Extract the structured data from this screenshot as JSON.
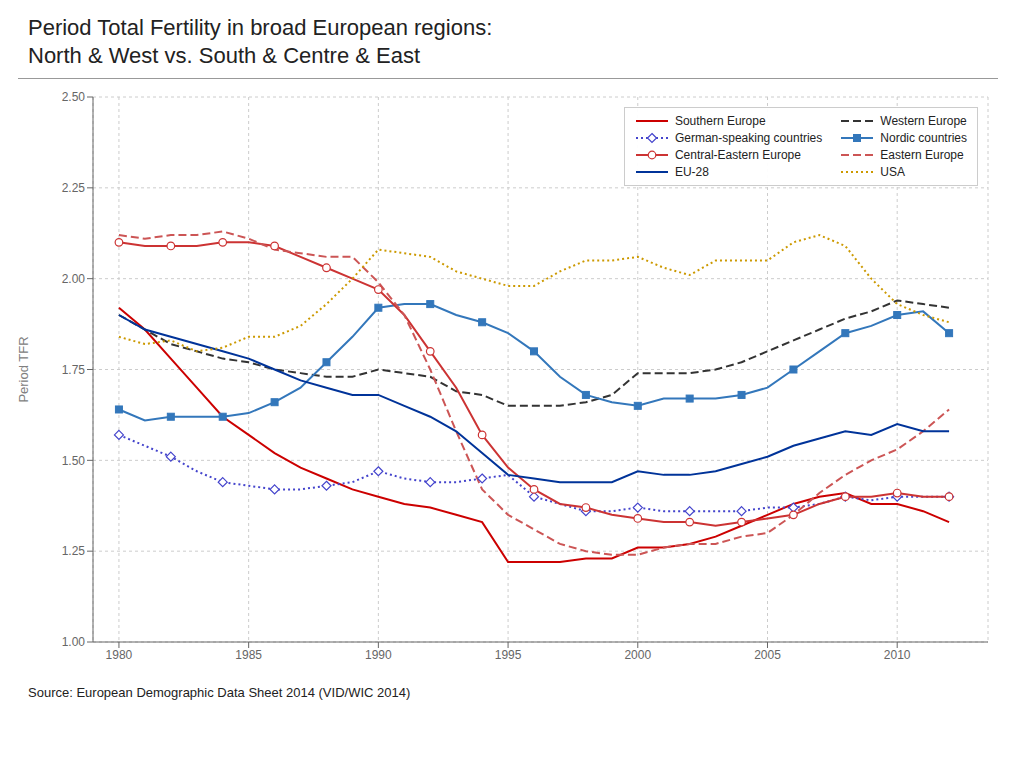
{
  "chart_data": {
    "type": "line",
    "title": "Period Total Fertility in broad European regions:",
    "subtitle": "North & West vs. South & Centre & East",
    "ylabel": "Period TFR",
    "annotations": [
      "Source: European Demographic Data Sheet 2014 (VID/WIC 2014)"
    ],
    "x": [
      1980,
      1981,
      1982,
      1983,
      1984,
      1985,
      1986,
      1987,
      1988,
      1989,
      1990,
      1991,
      1992,
      1993,
      1994,
      1995,
      1996,
      1997,
      1998,
      1999,
      2000,
      2001,
      2002,
      2003,
      2004,
      2005,
      2006,
      2007,
      2008,
      2009,
      2010,
      2011,
      2012
    ],
    "xlim": [
      1979,
      2013.5
    ],
    "xticks": [
      1980,
      1985,
      1990,
      1995,
      2000,
      2005,
      2010
    ],
    "ylim": [
      1.0,
      2.5
    ],
    "yticks": [
      {
        "value": 1.0,
        "label": "1.00"
      },
      {
        "value": 1.25,
        "label": "1.25"
      },
      {
        "value": 1.5,
        "label": "1.50"
      },
      {
        "value": 1.75,
        "label": "1.75"
      },
      {
        "value": 2.0,
        "label": "2.00"
      },
      {
        "value": 2.25,
        "label": "2.25"
      },
      {
        "value": 2.5,
        "label": "2.50"
      }
    ],
    "grid": true,
    "legend": "upper right",
    "series": [
      {
        "name": "Southern Europe",
        "color": "#cc0000",
        "line_style": "solid",
        "values": [
          1.92,
          1.86,
          1.78,
          1.7,
          1.62,
          1.57,
          1.52,
          1.48,
          1.45,
          1.42,
          1.4,
          1.38,
          1.37,
          1.35,
          1.33,
          1.22,
          1.22,
          1.22,
          1.23,
          1.23,
          1.26,
          1.26,
          1.27,
          1.29,
          1.32,
          1.35,
          1.38,
          1.4,
          1.41,
          1.38,
          1.38,
          1.36,
          1.33
        ]
      },
      {
        "name": "Western Europe",
        "color": "#333333",
        "line_style": "dashed",
        "values": [
          1.9,
          1.86,
          1.82,
          1.8,
          1.78,
          1.77,
          1.75,
          1.74,
          1.73,
          1.73,
          1.75,
          1.74,
          1.73,
          1.69,
          1.68,
          1.65,
          1.65,
          1.65,
          1.66,
          1.68,
          1.74,
          1.74,
          1.74,
          1.75,
          1.77,
          1.8,
          1.83,
          1.86,
          1.89,
          1.91,
          1.94,
          1.93,
          1.92
        ]
      },
      {
        "name": "German-speaking countries",
        "color": "#4444cc",
        "line_style": "dotted",
        "marker": "diamond",
        "values": [
          1.57,
          1.54,
          1.51,
          1.47,
          1.44,
          1.43,
          1.42,
          1.42,
          1.43,
          1.44,
          1.47,
          1.45,
          1.44,
          1.44,
          1.45,
          1.46,
          1.4,
          1.38,
          1.36,
          1.36,
          1.37,
          1.36,
          1.36,
          1.36,
          1.36,
          1.37,
          1.37,
          1.38,
          1.4,
          1.39,
          1.4,
          1.4,
          1.4
        ]
      },
      {
        "name": "Nordic countries",
        "color": "#3377bb",
        "line_style": "solid",
        "marker": "square",
        "values": [
          1.64,
          1.61,
          1.62,
          1.62,
          1.62,
          1.63,
          1.66,
          1.7,
          1.77,
          1.84,
          1.92,
          1.93,
          1.93,
          1.9,
          1.88,
          1.85,
          1.8,
          1.73,
          1.68,
          1.66,
          1.65,
          1.67,
          1.67,
          1.67,
          1.68,
          1.7,
          1.75,
          1.8,
          1.85,
          1.87,
          1.9,
          1.91,
          1.85
        ]
      },
      {
        "name": "Central-Eastern Europe",
        "color": "#cc3333",
        "line_style": "solid",
        "marker": "circle",
        "values": [
          2.1,
          2.09,
          2.09,
          2.09,
          2.1,
          2.1,
          2.09,
          2.06,
          2.03,
          2.0,
          1.97,
          1.9,
          1.8,
          1.7,
          1.57,
          1.48,
          1.42,
          1.38,
          1.37,
          1.35,
          1.34,
          1.33,
          1.33,
          1.32,
          1.33,
          1.34,
          1.35,
          1.38,
          1.4,
          1.4,
          1.41,
          1.4,
          1.4
        ]
      },
      {
        "name": "Eastern Europe",
        "color": "#cc5555",
        "line_style": "dashed",
        "values": [
          2.12,
          2.11,
          2.12,
          2.12,
          2.13,
          2.11,
          2.08,
          2.07,
          2.06,
          2.06,
          1.99,
          1.9,
          1.75,
          1.58,
          1.42,
          1.35,
          1.31,
          1.27,
          1.25,
          1.24,
          1.24,
          1.26,
          1.27,
          1.27,
          1.29,
          1.3,
          1.35,
          1.41,
          1.46,
          1.5,
          1.53,
          1.58,
          1.64
        ]
      },
      {
        "name": "EU-28",
        "color": "#003399",
        "line_style": "solid",
        "values": [
          1.9,
          1.86,
          1.84,
          1.82,
          1.8,
          1.78,
          1.75,
          1.72,
          1.7,
          1.68,
          1.68,
          1.65,
          1.62,
          1.58,
          1.52,
          1.46,
          1.45,
          1.44,
          1.44,
          1.44,
          1.47,
          1.46,
          1.46,
          1.47,
          1.49,
          1.51,
          1.54,
          1.56,
          1.58,
          1.57,
          1.6,
          1.58,
          1.58
        ]
      },
      {
        "name": "USA",
        "color": "#cc9900",
        "line_style": "dotted",
        "values": [
          1.84,
          1.82,
          1.83,
          1.8,
          1.81,
          1.84,
          1.84,
          1.87,
          1.93,
          2.0,
          2.08,
          2.07,
          2.06,
          2.02,
          2.0,
          1.98,
          1.98,
          2.02,
          2.05,
          2.05,
          2.06,
          2.03,
          2.01,
          2.05,
          2.05,
          2.05,
          2.1,
          2.12,
          2.09,
          2.0,
          1.93,
          1.9,
          1.88
        ]
      }
    ]
  }
}
